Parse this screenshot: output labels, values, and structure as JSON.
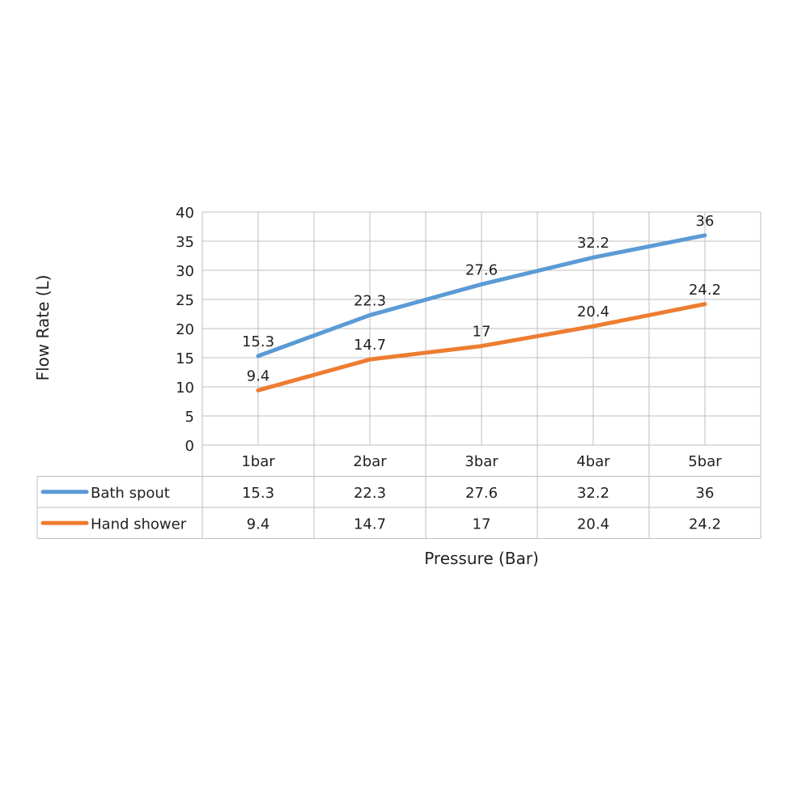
{
  "chart_data": {
    "type": "line",
    "title": "",
    "xlabel": "Pressure (Bar)",
    "ylabel": "Flow Rate (L)",
    "categories": [
      "1bar",
      "2bar",
      "3bar",
      "4bar",
      "5bar"
    ],
    "ylim": [
      0,
      40
    ],
    "yticks": [
      0,
      5,
      10,
      15,
      20,
      25,
      30,
      35,
      40
    ],
    "grid": true,
    "legend": "data-table-left",
    "data_table": true,
    "series": [
      {
        "name": "Bath spout",
        "color": "#5B9BD5",
        "values": [
          15.3,
          22.3,
          27.6,
          32.2,
          36
        ]
      },
      {
        "name": "Hand shower",
        "color": "#ED7D31",
        "values": [
          9.4,
          14.7,
          17,
          20.4,
          24.2
        ]
      }
    ]
  }
}
